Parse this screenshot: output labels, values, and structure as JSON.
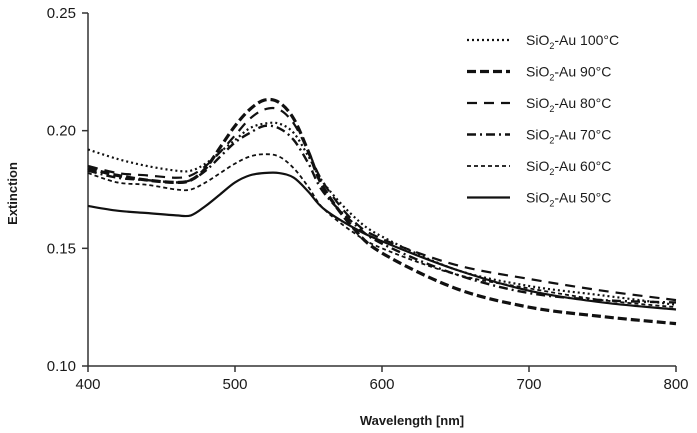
{
  "chart_data": {
    "type": "line",
    "title": "",
    "xlabel": "Wavelength [nm]",
    "ylabel": "Extinction",
    "xlim": [
      400,
      800
    ],
    "ylim": [
      0.1,
      0.25
    ],
    "xticks": [
      400,
      500,
      600,
      700,
      800
    ],
    "yticks": [
      0.1,
      0.15,
      0.2,
      0.25
    ],
    "xtick_labels": [
      "400",
      "500",
      "600",
      "700",
      "800"
    ],
    "ytick_labels": [
      "0.10",
      "0.15",
      "0.20",
      "0.25"
    ],
    "grid": false,
    "legend_position": "top-right",
    "series": [
      {
        "name_parts": [
          "SiO",
          "2",
          "-Au 100°C"
        ],
        "dash": "dotted",
        "points": [
          [
            400,
            0.192
          ],
          [
            420,
            0.188
          ],
          [
            440,
            0.185
          ],
          [
            460,
            0.183
          ],
          [
            470,
            0.183
          ],
          [
            480,
            0.186
          ],
          [
            490,
            0.191
          ],
          [
            500,
            0.196
          ],
          [
            510,
            0.201
          ],
          [
            520,
            0.203
          ],
          [
            530,
            0.203
          ],
          [
            540,
            0.199
          ],
          [
            550,
            0.189
          ],
          [
            560,
            0.178
          ],
          [
            580,
            0.164
          ],
          [
            600,
            0.155
          ],
          [
            650,
            0.141
          ],
          [
            700,
            0.134
          ],
          [
            750,
            0.13
          ],
          [
            800,
            0.126
          ]
        ]
      },
      {
        "name_parts": [
          "SiO",
          "2",
          "-Au 90°C"
        ],
        "dash": "dashed-long",
        "points": [
          [
            400,
            0.184
          ],
          [
            420,
            0.181
          ],
          [
            440,
            0.179
          ],
          [
            460,
            0.178
          ],
          [
            470,
            0.179
          ],
          [
            480,
            0.184
          ],
          [
            490,
            0.193
          ],
          [
            500,
            0.202
          ],
          [
            510,
            0.209
          ],
          [
            520,
            0.213
          ],
          [
            530,
            0.212
          ],
          [
            540,
            0.205
          ],
          [
            550,
            0.191
          ],
          [
            560,
            0.176
          ],
          [
            580,
            0.159
          ],
          [
            600,
            0.148
          ],
          [
            650,
            0.133
          ],
          [
            700,
            0.125
          ],
          [
            750,
            0.121
          ],
          [
            800,
            0.118
          ]
        ]
      },
      {
        "name_parts": [
          "SiO",
          "2",
          "-Au 80°C"
        ],
        "dash": "dashed",
        "points": [
          [
            400,
            0.185
          ],
          [
            420,
            0.182
          ],
          [
            440,
            0.181
          ],
          [
            460,
            0.18
          ],
          [
            470,
            0.181
          ],
          [
            480,
            0.185
          ],
          [
            490,
            0.191
          ],
          [
            500,
            0.198
          ],
          [
            510,
            0.205
          ],
          [
            520,
            0.209
          ],
          [
            530,
            0.209
          ],
          [
            540,
            0.203
          ],
          [
            550,
            0.191
          ],
          [
            560,
            0.178
          ],
          [
            580,
            0.162
          ],
          [
            600,
            0.154
          ],
          [
            650,
            0.143
          ],
          [
            700,
            0.137
          ],
          [
            750,
            0.132
          ],
          [
            800,
            0.128
          ]
        ]
      },
      {
        "name_parts": [
          "SiO",
          "2",
          "-Au 70°C"
        ],
        "dash": "dash-dot",
        "points": [
          [
            400,
            0.183
          ],
          [
            420,
            0.18
          ],
          [
            440,
            0.179
          ],
          [
            460,
            0.178
          ],
          [
            470,
            0.179
          ],
          [
            480,
            0.183
          ],
          [
            490,
            0.189
          ],
          [
            500,
            0.195
          ],
          [
            510,
            0.199
          ],
          [
            520,
            0.202
          ],
          [
            530,
            0.201
          ],
          [
            540,
            0.196
          ],
          [
            550,
            0.186
          ],
          [
            560,
            0.174
          ],
          [
            580,
            0.161
          ],
          [
            600,
            0.152
          ],
          [
            650,
            0.139
          ],
          [
            700,
            0.131
          ],
          [
            750,
            0.128
          ],
          [
            800,
            0.127
          ]
        ]
      },
      {
        "name_parts": [
          "SiO",
          "2",
          "-Au 60°C"
        ],
        "dash": "dashed-short",
        "points": [
          [
            400,
            0.182
          ],
          [
            420,
            0.178
          ],
          [
            440,
            0.177
          ],
          [
            460,
            0.175
          ],
          [
            470,
            0.175
          ],
          [
            480,
            0.178
          ],
          [
            490,
            0.182
          ],
          [
            500,
            0.186
          ],
          [
            510,
            0.189
          ],
          [
            520,
            0.19
          ],
          [
            530,
            0.189
          ],
          [
            540,
            0.184
          ],
          [
            550,
            0.176
          ],
          [
            560,
            0.167
          ],
          [
            580,
            0.157
          ],
          [
            600,
            0.15
          ],
          [
            650,
            0.139
          ],
          [
            700,
            0.133
          ],
          [
            750,
            0.128
          ],
          [
            800,
            0.125
          ]
        ]
      },
      {
        "name_parts": [
          "SiO",
          "2",
          "-Au 50°C"
        ],
        "dash": "solid",
        "points": [
          [
            400,
            0.168
          ],
          [
            420,
            0.166
          ],
          [
            440,
            0.165
          ],
          [
            460,
            0.164
          ],
          [
            470,
            0.164
          ],
          [
            480,
            0.168
          ],
          [
            490,
            0.173
          ],
          [
            500,
            0.178
          ],
          [
            510,
            0.181
          ],
          [
            520,
            0.182
          ],
          [
            530,
            0.182
          ],
          [
            540,
            0.18
          ],
          [
            550,
            0.174
          ],
          [
            560,
            0.167
          ],
          [
            580,
            0.159
          ],
          [
            600,
            0.153
          ],
          [
            650,
            0.141
          ],
          [
            700,
            0.132
          ],
          [
            750,
            0.127
          ],
          [
            800,
            0.124
          ]
        ]
      }
    ]
  }
}
